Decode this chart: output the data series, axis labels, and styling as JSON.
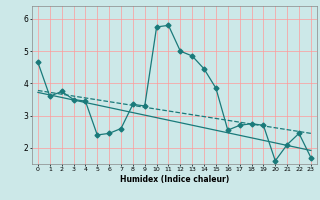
{
  "title": "",
  "xlabel": "Humidex (Indice chaleur)",
  "bg_color": "#cce8e8",
  "line_color": "#1a7a7a",
  "grid_color": "#ff9999",
  "xlim": [
    -0.5,
    23.5
  ],
  "ylim": [
    1.5,
    6.4
  ],
  "yticks": [
    2,
    3,
    4,
    5,
    6
  ],
  "xticks": [
    0,
    1,
    2,
    3,
    4,
    5,
    6,
    7,
    8,
    9,
    10,
    11,
    12,
    13,
    14,
    15,
    16,
    17,
    18,
    19,
    20,
    21,
    22,
    23
  ],
  "series1_x": [
    0,
    1,
    2,
    3,
    4,
    5,
    6,
    7,
    8,
    9,
    10,
    11,
    12,
    13,
    14,
    15,
    16,
    17,
    18,
    19,
    20,
    21,
    22,
    23
  ],
  "series1_y": [
    4.65,
    3.6,
    3.75,
    3.5,
    3.45,
    2.4,
    2.45,
    2.6,
    3.35,
    3.3,
    5.75,
    5.8,
    5.0,
    4.85,
    4.45,
    3.85,
    2.55,
    2.7,
    2.75,
    2.7,
    1.6,
    2.1,
    2.45,
    1.7
  ],
  "series2_x": [
    0,
    23
  ],
  "series2_y": [
    3.78,
    2.45
  ],
  "series3_x": [
    0,
    23
  ],
  "series3_y": [
    3.72,
    1.92
  ],
  "markersize": 2.5,
  "linewidth": 0.9
}
